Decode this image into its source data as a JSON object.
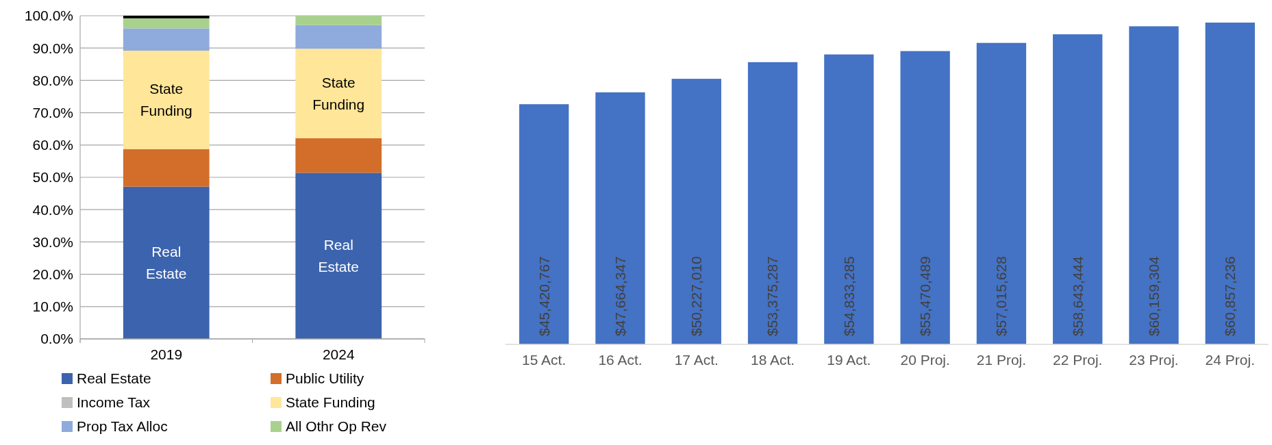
{
  "chart_data": [
    {
      "type": "bar",
      "stacked": true,
      "categories": [
        "2019",
        "2024"
      ],
      "series": [
        {
          "name": "Real Estate",
          "color": "#3c63ad",
          "values": [
            47.1,
            51.4
          ]
        },
        {
          "name": "Public Utility",
          "color": "#d26e2a",
          "values": [
            11.6,
            10.7
          ]
        },
        {
          "name": "Income Tax",
          "color": "#bfbfbf",
          "values": [
            0,
            0
          ]
        },
        {
          "name": "State Funding",
          "color": "#ffe699",
          "values": [
            30.5,
            27.7
          ]
        },
        {
          "name": "Prop Tax Alloc",
          "color": "#8faadc",
          "values": [
            6.9,
            7.3
          ]
        },
        {
          "name": "All Othr Op Rev",
          "color": "#a9d18e",
          "values": [
            3.1,
            2.9
          ]
        },
        {
          "color": "#000000",
          "values": [
            0.8,
            0
          ]
        }
      ],
      "annotations": [
        "Real Estate",
        "Real Estate",
        "State Funding",
        "State Funding"
      ],
      "ylim": [
        0,
        100
      ],
      "yticks": [
        {
          "value": 0,
          "label": "0.0%"
        },
        {
          "value": 10,
          "label": "10.0%"
        },
        {
          "value": 20,
          "label": "20.0%"
        },
        {
          "value": 30,
          "label": "30.0%"
        },
        {
          "value": 40,
          "label": "40.0%"
        },
        {
          "value": 50,
          "label": "50.0%"
        },
        {
          "value": 60,
          "label": "60.0%"
        },
        {
          "value": 70,
          "label": "70.0%"
        },
        {
          "value": 80,
          "label": "80.0%"
        },
        {
          "value": 90,
          "label": "90.0%"
        },
        {
          "value": 100,
          "label": "100.0%"
        }
      ],
      "grid": "y",
      "legend": "bottom"
    },
    {
      "type": "bar",
      "categories": [
        "15 Act.",
        "16 Act.",
        "17 Act.",
        "18 Act.",
        "19 Act.",
        "20 Proj.",
        "21 Proj.",
        "22 Proj.",
        "23 Proj.",
        "24 Proj."
      ],
      "values": [
        45420767,
        47664347,
        50227010,
        53375287,
        54833285,
        55470489,
        57015628,
        58643444,
        60159304,
        60857236
      ],
      "value_labels": [
        "$45,420,767",
        "$47,664,347",
        "$50,227,010",
        "$53,375,287",
        "$54,833,285",
        "$55,470,489",
        "$57,015,628",
        "$58,643,444",
        "$60,159,304",
        "$60,857,236"
      ],
      "color": "#4472c4",
      "tick_labels": "x"
    }
  ]
}
